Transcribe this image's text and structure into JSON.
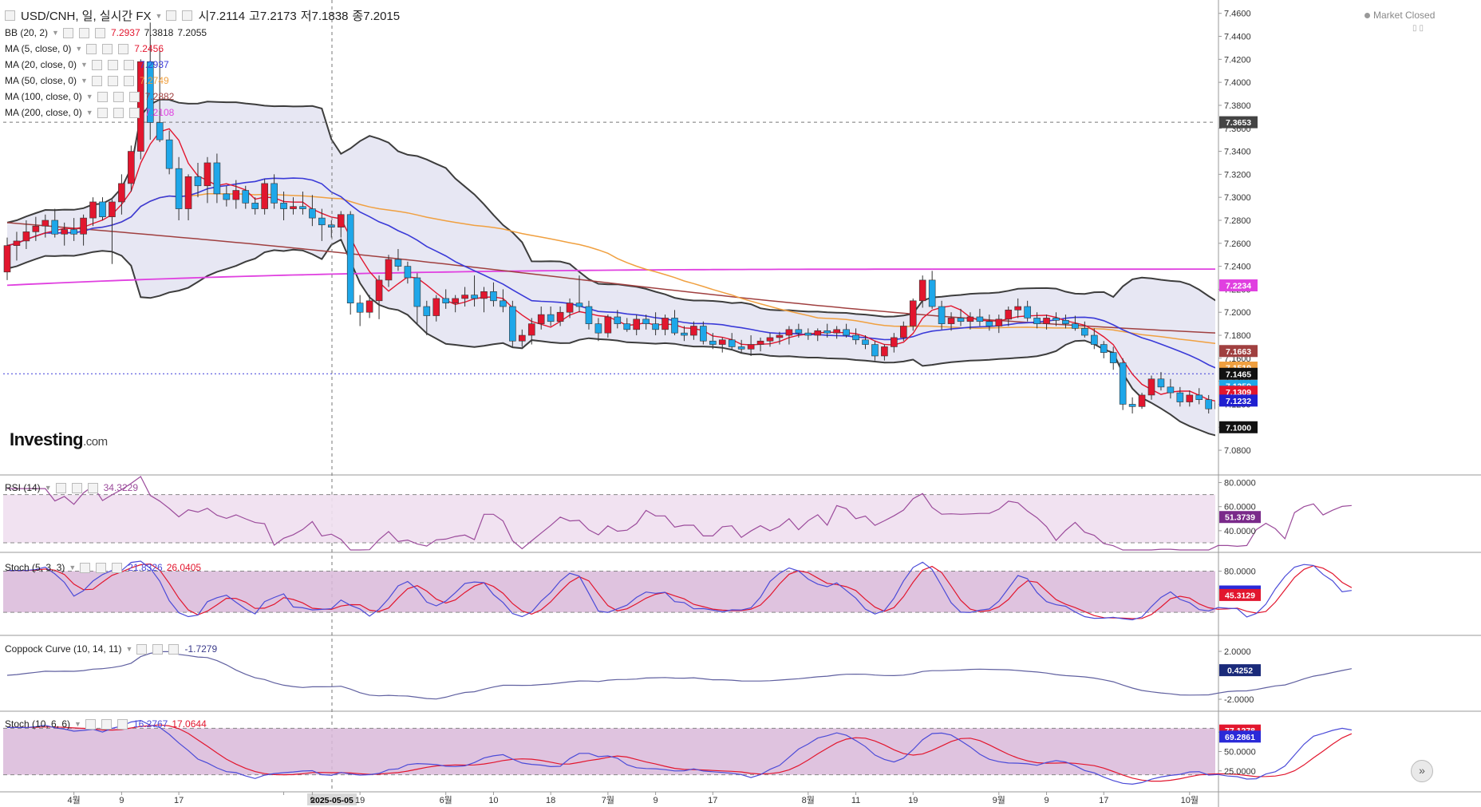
{
  "header": {
    "title": "USD/CNH, 일, 실시간 FX",
    "open_label": "시7.2114",
    "high_label": "고7.2173",
    "low_label": "저7.1838",
    "close_label": "종7.2015",
    "market_status": "Market Closed"
  },
  "indicators": {
    "bb": {
      "label": "BB (20, 2)",
      "values": [
        "7.2937",
        "7.3818",
        "7.2055"
      ]
    },
    "ma5": {
      "label": "MA (5, close, 0)",
      "value": "7.2456"
    },
    "ma20": {
      "label": "MA (20, close, 0)",
      "value": "7.2937"
    },
    "ma50": {
      "label": "MA (50, close, 0)",
      "value": "7.2749"
    },
    "ma100": {
      "label": "MA (100, close, 0)",
      "value": "7.2882"
    },
    "ma200": {
      "label": "MA (200, close, 0)",
      "value": "7.2108"
    },
    "rsi": {
      "label": "RSI (14)",
      "value": "34.3229"
    },
    "stoch1": {
      "label": "Stoch (5, 3, 3)",
      "k": "21.8326",
      "d": "26.0405"
    },
    "coppock": {
      "label": "Coppock Curve (10, 14, 11)",
      "value": "-1.7279"
    },
    "stoch2": {
      "label": "Stoch (10, 6, 6)",
      "k": "16.2767",
      "d": "17.0644"
    }
  },
  "logo": {
    "brand": "Investing",
    "suffix": ".com"
  },
  "colors": {
    "up": "#e2162e",
    "down": "#1ea7e9",
    "bb_band": "#3d3d3d",
    "bb_fill": "#e4e4f2",
    "ma5": "#e2162e",
    "ma20": "#3a3ad8",
    "ma50": "#f0a040",
    "ma100": "#a04040",
    "ma200": "#e040e0",
    "rsi": "#9b4b9b",
    "stoch_k": "#4b4bd8",
    "stoch_d": "#e2162e",
    "coppock": "#6060a0",
    "band_fill": "#d9b8d9"
  },
  "chart_data": [
    {
      "type": "candlestick",
      "title": "USD/CNH, 일, 실시간 FX",
      "x_ticks": [
        "4월",
        "9",
        "17",
        "2025-05-05",
        "9",
        "19",
        "6월",
        "10",
        "18",
        "7월",
        "9",
        "17",
        "8월",
        "11",
        "19",
        "9월",
        "9",
        "17",
        "10월"
      ],
      "y_ticks": [
        "7.0800",
        "7.1000",
        "7.1200",
        "7.1400",
        "7.1600",
        "7.1800",
        "7.2000",
        "7.2200",
        "7.2400",
        "7.2600",
        "7.2800",
        "7.3000",
        "7.3200",
        "7.3400",
        "7.3600",
        "7.3800",
        "7.4000",
        "7.4200",
        "7.4400",
        "7.4600"
      ],
      "ylim": [
        7.062,
        7.4716
      ],
      "price_tags": [
        {
          "value": "7.3653",
          "kind": "crosshair"
        },
        {
          "value": "7.2234",
          "kind": "ma200"
        },
        {
          "value": "7.1663",
          "kind": "ma100"
        },
        {
          "value": "7.1519",
          "kind": "ma50"
        },
        {
          "value": "7.1465",
          "kind": "last"
        },
        {
          "value": "7.1359",
          "kind": "bb_mid"
        },
        {
          "value": "7.1309",
          "kind": "ma5"
        },
        {
          "value": "7.1232",
          "kind": "ma20"
        },
        {
          "value": "7.1000",
          "kind": "bb_lower"
        }
      ],
      "candles": [
        [
          7.235,
          7.265,
          7.228,
          7.258
        ],
        [
          7.258,
          7.27,
          7.245,
          7.262
        ],
        [
          7.262,
          7.28,
          7.255,
          7.27
        ],
        [
          7.27,
          7.283,
          7.262,
          7.275
        ],
        [
          7.275,
          7.285,
          7.265,
          7.28
        ],
        [
          7.28,
          7.29,
          7.265,
          7.268
        ],
        [
          7.268,
          7.278,
          7.258,
          7.272
        ],
        [
          7.272,
          7.282,
          7.262,
          7.268
        ],
        [
          7.268,
          7.285,
          7.258,
          7.282
        ],
        [
          7.282,
          7.3,
          7.275,
          7.296
        ],
        [
          7.296,
          7.3,
          7.28,
          7.283
        ],
        [
          7.283,
          7.298,
          7.242,
          7.296
        ],
        [
          7.296,
          7.32,
          7.285,
          7.312
        ],
        [
          7.312,
          7.345,
          7.305,
          7.34
        ],
        [
          7.34,
          7.42,
          7.333,
          7.418
        ],
        [
          7.418,
          7.452,
          7.35,
          7.365
        ],
        [
          7.365,
          7.428,
          7.348,
          7.35
        ],
        [
          7.35,
          7.358,
          7.32,
          7.325
        ],
        [
          7.325,
          7.335,
          7.28,
          7.29
        ],
        [
          7.29,
          7.32,
          7.28,
          7.318
        ],
        [
          7.318,
          7.33,
          7.3,
          7.31
        ],
        [
          7.31,
          7.335,
          7.295,
          7.33
        ],
        [
          7.33,
          7.338,
          7.295,
          7.303
        ],
        [
          7.303,
          7.31,
          7.292,
          7.298
        ],
        [
          7.298,
          7.315,
          7.29,
          7.306
        ],
        [
          7.306,
          7.31,
          7.29,
          7.295
        ],
        [
          7.295,
          7.3,
          7.285,
          7.29
        ],
        [
          7.29,
          7.316,
          7.285,
          7.312
        ],
        [
          7.312,
          7.32,
          7.29,
          7.295
        ],
        [
          7.295,
          7.305,
          7.28,
          7.29
        ],
        [
          7.29,
          7.3,
          7.285,
          7.292
        ],
        [
          7.292,
          7.305,
          7.285,
          7.29
        ],
        [
          7.29,
          7.302,
          7.275,
          7.282
        ],
        [
          7.282,
          7.29,
          7.262,
          7.276
        ],
        [
          7.276,
          7.28,
          7.265,
          7.274
        ],
        [
          7.274,
          7.288,
          7.265,
          7.285
        ],
        [
          7.285,
          7.288,
          7.198,
          7.208
        ],
        [
          7.208,
          7.215,
          7.188,
          7.2
        ],
        [
          7.2,
          7.215,
          7.195,
          7.21
        ],
        [
          7.21,
          7.232,
          7.194,
          7.228
        ],
        [
          7.228,
          7.25,
          7.222,
          7.246
        ],
        [
          7.246,
          7.255,
          7.236,
          7.24
        ],
        [
          7.24,
          7.244,
          7.225,
          7.23
        ],
        [
          7.23,
          7.234,
          7.19,
          7.205
        ],
        [
          7.205,
          7.21,
          7.18,
          7.197
        ],
        [
          7.197,
          7.215,
          7.192,
          7.212
        ],
        [
          7.212,
          7.22,
          7.203,
          7.208
        ],
        [
          7.208,
          7.215,
          7.2,
          7.212
        ],
        [
          7.212,
          7.222,
          7.205,
          7.215
        ],
        [
          7.215,
          7.232,
          7.205,
          7.212
        ],
        [
          7.212,
          7.222,
          7.2,
          7.218
        ],
        [
          7.218,
          7.226,
          7.205,
          7.21
        ],
        [
          7.21,
          7.22,
          7.2,
          7.205
        ],
        [
          7.205,
          7.21,
          7.17,
          7.175
        ],
        [
          7.175,
          7.185,
          7.17,
          7.18
        ],
        [
          7.18,
          7.195,
          7.172,
          7.19
        ],
        [
          7.19,
          7.205,
          7.185,
          7.198
        ],
        [
          7.198,
          7.205,
          7.188,
          7.192
        ],
        [
          7.192,
          7.205,
          7.188,
          7.2
        ],
        [
          7.2,
          7.212,
          7.195,
          7.208
        ],
        [
          7.208,
          7.232,
          7.2,
          7.205
        ],
        [
          7.205,
          7.21,
          7.185,
          7.19
        ],
        [
          7.19,
          7.195,
          7.175,
          7.182
        ],
        [
          7.182,
          7.198,
          7.178,
          7.196
        ],
        [
          7.196,
          7.202,
          7.186,
          7.19
        ],
        [
          7.19,
          7.195,
          7.183,
          7.185
        ],
        [
          7.185,
          7.198,
          7.18,
          7.194
        ],
        [
          7.194,
          7.198,
          7.185,
          7.19
        ],
        [
          7.19,
          7.2,
          7.18,
          7.185
        ],
        [
          7.185,
          7.198,
          7.18,
          7.195
        ],
        [
          7.195,
          7.202,
          7.18,
          7.182
        ],
        [
          7.182,
          7.188,
          7.175,
          7.18
        ],
        [
          7.18,
          7.192,
          7.176,
          7.188
        ],
        [
          7.188,
          7.192,
          7.172,
          7.175
        ],
        [
          7.175,
          7.182,
          7.168,
          7.172
        ],
        [
          7.172,
          7.178,
          7.165,
          7.176
        ],
        [
          7.176,
          7.182,
          7.168,
          7.17
        ],
        [
          7.17,
          7.176,
          7.165,
          7.168
        ],
        [
          7.168,
          7.18,
          7.162,
          7.172
        ],
        [
          7.172,
          7.178,
          7.166,
          7.175
        ],
        [
          7.175,
          7.182,
          7.17,
          7.178
        ],
        [
          7.178,
          7.183,
          7.172,
          7.18
        ],
        [
          7.18,
          7.188,
          7.172,
          7.185
        ],
        [
          7.185,
          7.19,
          7.178,
          7.182
        ],
        [
          7.182,
          7.186,
          7.176,
          7.18
        ],
        [
          7.18,
          7.186,
          7.175,
          7.184
        ],
        [
          7.184,
          7.19,
          7.178,
          7.182
        ],
        [
          7.182,
          7.188,
          7.177,
          7.185
        ],
        [
          7.185,
          7.19,
          7.178,
          7.18
        ],
        [
          7.18,
          7.186,
          7.172,
          7.176
        ],
        [
          7.176,
          7.18,
          7.168,
          7.172
        ],
        [
          7.172,
          7.175,
          7.158,
          7.162
        ],
        [
          7.162,
          7.172,
          7.158,
          7.17
        ],
        [
          7.17,
          7.182,
          7.165,
          7.178
        ],
        [
          7.178,
          7.192,
          7.175,
          7.188
        ],
        [
          7.188,
          7.212,
          7.184,
          7.21
        ],
        [
          7.21,
          7.232,
          7.204,
          7.228
        ],
        [
          7.228,
          7.236,
          7.203,
          7.205
        ],
        [
          7.205,
          7.21,
          7.185,
          7.19
        ],
        [
          7.19,
          7.2,
          7.184,
          7.195
        ],
        [
          7.195,
          7.203,
          7.188,
          7.192
        ],
        [
          7.192,
          7.2,
          7.185,
          7.196
        ],
        [
          7.196,
          7.203,
          7.188,
          7.192
        ],
        [
          7.192,
          7.198,
          7.184,
          7.188
        ],
        [
          7.188,
          7.198,
          7.182,
          7.194
        ],
        [
          7.194,
          7.205,
          7.188,
          7.202
        ],
        [
          7.202,
          7.212,
          7.195,
          7.205
        ],
        [
          7.205,
          7.21,
          7.192,
          7.195
        ],
        [
          7.195,
          7.2,
          7.186,
          7.19
        ],
        [
          7.19,
          7.198,
          7.185,
          7.195
        ],
        [
          7.195,
          7.2,
          7.188,
          7.193
        ],
        [
          7.193,
          7.198,
          7.186,
          7.19
        ],
        [
          7.19,
          7.197,
          7.184,
          7.186
        ],
        [
          7.186,
          7.192,
          7.178,
          7.18
        ],
        [
          7.18,
          7.186,
          7.168,
          7.172
        ],
        [
          7.172,
          7.175,
          7.16,
          7.165
        ],
        [
          7.165,
          7.17,
          7.15,
          7.156
        ],
        [
          7.156,
          7.16,
          7.115,
          7.12
        ],
        [
          7.12,
          7.126,
          7.112,
          7.118
        ],
        [
          7.118,
          7.13,
          7.116,
          7.128
        ],
        [
          7.128,
          7.145,
          7.124,
          7.142
        ],
        [
          7.142,
          7.148,
          7.132,
          7.135
        ],
        [
          7.135,
          7.142,
          7.125,
          7.13
        ],
        [
          7.13,
          7.135,
          7.118,
          7.122
        ],
        [
          7.122,
          7.132,
          7.118,
          7.128
        ],
        [
          7.128,
          7.134,
          7.12,
          7.124
        ],
        [
          7.124,
          7.128,
          7.112,
          7.116
        ],
        [
          7.116,
          7.125,
          7.11,
          7.122
        ],
        [
          7.122,
          7.128,
          7.112,
          7.114
        ],
        [
          7.114,
          7.118,
          7.1,
          7.104
        ],
        [
          7.104,
          7.11,
          7.094,
          7.098
        ],
        [
          7.098,
          7.105,
          7.09,
          7.102
        ],
        [
          7.102,
          7.112,
          7.098,
          7.11
        ],
        [
          7.11,
          7.116,
          7.104,
          7.112
        ],
        [
          7.112,
          7.118,
          7.108,
          7.114
        ],
        [
          7.114,
          7.15,
          7.11,
          7.146
        ],
        [
          7.146,
          7.158,
          7.14,
          7.152
        ],
        [
          7.152,
          7.158,
          7.14,
          7.148
        ],
        [
          7.148,
          7.155,
          7.13,
          7.135
        ],
        [
          7.135,
          7.142,
          7.128,
          7.14
        ],
        [
          7.14,
          7.146,
          7.132,
          7.138
        ],
        [
          7.138,
          7.148,
          7.13,
          7.146
        ]
      ]
    },
    {
      "type": "line",
      "name_label": "RSI (14)",
      "y_ticks": [
        "40.0000",
        "60.0000",
        "80.0000"
      ],
      "ylim": [
        24,
        85
      ],
      "levels": [
        30,
        70
      ],
      "current": "51.3739"
    },
    {
      "type": "line",
      "name_label": "Stoch (5, 3, 3)",
      "y_ticks": [
        "80.0000"
      ],
      "ylim": [
        -10,
        105
      ],
      "levels": [
        20,
        80
      ],
      "current_k": "50.4074",
      "current_d": "45.3129"
    },
    {
      "type": "line",
      "name_label": "Coppock Curve (10, 14, 11)",
      "y_ticks": [
        "2.0000",
        "-2.0000"
      ],
      "ylim": [
        -2.8,
        3.2
      ],
      "current": "0.4252"
    },
    {
      "type": "line",
      "name_label": "Stoch (10, 6, 6)",
      "y_ticks": [
        "25.0000",
        "50.0000",
        "75.0000"
      ],
      "ylim": [
        0,
        100
      ],
      "levels": [
        20,
        80
      ],
      "current_k": "69.2861",
      "current_d": "77.1278"
    }
  ]
}
